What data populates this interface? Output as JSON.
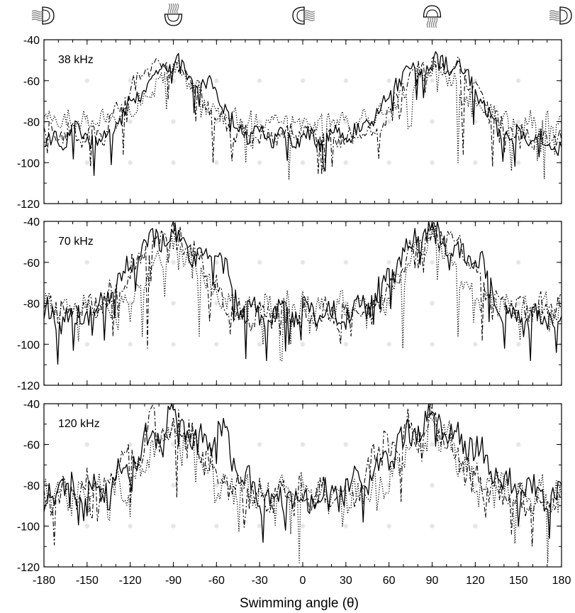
{
  "chart_data": [
    {
      "type": "line",
      "panel_label": "38 kHz",
      "xlim": [
        -180,
        180
      ],
      "ylim": [
        -120,
        -40
      ],
      "xticks": [
        -180,
        -150,
        -120,
        -90,
        -60,
        -30,
        0,
        30,
        60,
        90,
        120,
        150,
        180
      ],
      "yticks": [
        -40,
        -60,
        -80,
        -100,
        -120
      ],
      "series": [
        {
          "style": "solid",
          "x": [
            -180,
            -160,
            -140,
            -120,
            -105,
            -95,
            -85,
            -75,
            -60,
            -50,
            -40,
            -20,
            0,
            20,
            40,
            55,
            65,
            75,
            85,
            95,
            105,
            120,
            130,
            140,
            160,
            180
          ],
          "values": [
            -93,
            -85,
            -90,
            -72,
            -58,
            -53,
            -50,
            -62,
            -63,
            -80,
            -86,
            -88,
            -89,
            -88,
            -84,
            -73,
            -60,
            -55,
            -53,
            -51,
            -52,
            -62,
            -80,
            -85,
            -89,
            -92
          ]
        },
        {
          "style": "dashed",
          "x": [
            -180,
            -160,
            -140,
            -125,
            -110,
            -100,
            -90,
            -80,
            -70,
            -60,
            -50,
            -30,
            0,
            30,
            50,
            60,
            70,
            80,
            90,
            100,
            110,
            125,
            140,
            160,
            180
          ],
          "values": [
            -84,
            -86,
            -88,
            -69,
            -56,
            -52,
            -52,
            -57,
            -68,
            -78,
            -85,
            -88,
            -85,
            -88,
            -85,
            -75,
            -62,
            -54,
            -52,
            -52,
            -55,
            -68,
            -82,
            -88,
            -87
          ],
          "min_spikes": [
            [
              -148,
              -102
            ],
            [
              -125,
              -96
            ],
            [
              -62,
              -100
            ],
            [
              53,
              -98
            ],
            [
              112,
              -96
            ],
            [
              132,
              -102
            ]
          ]
        },
        {
          "style": "dotted",
          "x": [
            -180,
            -150,
            -130,
            -110,
            -100,
            -90,
            -80,
            -70,
            -60,
            -40,
            -20,
            0,
            20,
            40,
            60,
            70,
            80,
            90,
            100,
            110,
            130,
            150,
            180
          ],
          "values": [
            -80,
            -80,
            -78,
            -70,
            -62,
            -54,
            -58,
            -68,
            -76,
            -80,
            -80,
            -80,
            -80,
            -80,
            -76,
            -67,
            -58,
            -53,
            -57,
            -66,
            -77,
            -80,
            -80
          ],
          "min_spikes": [
            [
              -95,
              -74
            ],
            [
              -40,
              -100
            ],
            [
              -10,
              -108
            ],
            [
              15,
              -104
            ],
            [
              75,
              -82
            ],
            [
              108,
              -100
            ],
            [
              145,
              -104
            ],
            [
              168,
              -108
            ]
          ]
        }
      ]
    },
    {
      "type": "line",
      "panel_label": "70 kHz",
      "xlim": [
        -180,
        180
      ],
      "ylim": [
        -120,
        -40
      ],
      "xticks": [
        -180,
        -150,
        -120,
        -90,
        -60,
        -30,
        0,
        30,
        60,
        90,
        120,
        150,
        180
      ],
      "yticks": [
        -40,
        -60,
        -80,
        -100,
        -120
      ],
      "series": [
        {
          "style": "solid",
          "x": [
            -180,
            -160,
            -140,
            -130,
            -120,
            -110,
            -100,
            -90,
            -80,
            -70,
            -60,
            -55,
            -45,
            -30,
            0,
            30,
            45,
            60,
            70,
            80,
            90,
            100,
            110,
            120,
            125,
            135,
            150,
            180
          ],
          "values": [
            -85,
            -88,
            -82,
            -72,
            -62,
            -52,
            -48,
            -46,
            -54,
            -62,
            -56,
            -62,
            -80,
            -86,
            -85,
            -86,
            -80,
            -68,
            -55,
            -47,
            -45,
            -48,
            -58,
            -54,
            -62,
            -82,
            -88,
            -86
          ],
          "min_spikes": [
            [
              -160,
              -103
            ],
            [
              -138,
              -98
            ],
            [
              -40,
              -107
            ],
            [
              -25,
              -108
            ],
            [
              -10,
              -100
            ],
            [
              140,
              -102
            ],
            [
              158,
              -108
            ],
            [
              176,
              -104
            ]
          ]
        },
        {
          "style": "dashed",
          "x": [
            -180,
            -160,
            -140,
            -125,
            -115,
            -105,
            -95,
            -85,
            -75,
            -65,
            -55,
            -40,
            0,
            40,
            55,
            65,
            75,
            85,
            95,
            105,
            115,
            125,
            140,
            160,
            180
          ],
          "values": [
            -80,
            -84,
            -80,
            -70,
            -60,
            -50,
            -47,
            -48,
            -55,
            -68,
            -80,
            -86,
            -85,
            -86,
            -80,
            -68,
            -56,
            -48,
            -46,
            -48,
            -56,
            -70,
            -82,
            -84,
            -80
          ],
          "min_spikes": [
            [
              -132,
              -96
            ],
            [
              -108,
              -102
            ],
            [
              34,
              -96
            ],
            [
              125,
              -98
            ]
          ]
        },
        {
          "style": "dotted",
          "x": [
            -180,
            -150,
            -120,
            -110,
            -100,
            -90,
            -80,
            -70,
            -60,
            -40,
            0,
            40,
            60,
            70,
            80,
            90,
            100,
            110,
            120,
            150,
            180
          ],
          "values": [
            -82,
            -82,
            -80,
            -70,
            -58,
            -52,
            -56,
            -66,
            -78,
            -82,
            -82,
            -82,
            -78,
            -64,
            -52,
            -48,
            -54,
            -66,
            -78,
            -82,
            -82
          ],
          "min_spikes": [
            [
              -112,
              -96
            ],
            [
              -72,
              -96
            ],
            [
              -15,
              -108
            ],
            [
              -8,
              -100
            ],
            [
              70,
              -102
            ],
            [
              108,
              -96
            ]
          ]
        }
      ]
    },
    {
      "type": "line",
      "panel_label": "120 kHz",
      "xlim": [
        -180,
        180
      ],
      "ylim": [
        -120,
        -40
      ],
      "xticks": [
        -180,
        -150,
        -120,
        -90,
        -60,
        -30,
        0,
        30,
        60,
        90,
        120,
        150,
        180
      ],
      "yticks": [
        -40,
        -60,
        -80,
        -100,
        -120
      ],
      "series": [
        {
          "style": "solid",
          "x": [
            -180,
            -160,
            -140,
            -130,
            -120,
            -110,
            -100,
            -90,
            -85,
            -80,
            -70,
            -60,
            -55,
            -45,
            -30,
            0,
            30,
            45,
            55,
            65,
            75,
            85,
            92,
            100,
            110,
            120,
            130,
            140,
            160,
            180
          ],
          "values": [
            -86,
            -80,
            -84,
            -75,
            -70,
            -60,
            -52,
            -50,
            -45,
            -55,
            -60,
            -56,
            -52,
            -78,
            -84,
            -86,
            -82,
            -76,
            -70,
            -62,
            -55,
            -50,
            -46,
            -52,
            -56,
            -60,
            -70,
            -80,
            -84,
            -86
          ],
          "min_spikes": [
            [
              -150,
              -95
            ],
            [
              -135,
              -92
            ],
            [
              -28,
              -108
            ],
            [
              -12,
              -102
            ],
            [
              42,
              -98
            ],
            [
              150,
              -100
            ],
            [
              172,
              -106
            ]
          ]
        },
        {
          "style": "dashed",
          "x": [
            -180,
            -150,
            -130,
            -125,
            -115,
            -105,
            -95,
            -85,
            -75,
            -65,
            -50,
            -30,
            0,
            30,
            45,
            50,
            60,
            70,
            80,
            90,
            100,
            115,
            130,
            150,
            180
          ],
          "values": [
            -86,
            -82,
            -76,
            -58,
            -66,
            -50,
            -54,
            -48,
            -60,
            -68,
            -80,
            -86,
            -86,
            -84,
            -78,
            -58,
            -64,
            -52,
            -56,
            -48,
            -58,
            -72,
            -82,
            -86,
            -86
          ],
          "min_spikes": [
            [
              -120,
              -90
            ],
            [
              -88,
              -86
            ],
            [
              68,
              -88
            ],
            [
              145,
              -104
            ],
            [
              160,
              -110
            ]
          ]
        },
        {
          "style": "dotted",
          "x": [
            -180,
            -150,
            -120,
            -110,
            -100,
            -90,
            -80,
            -70,
            -60,
            -40,
            0,
            40,
            60,
            70,
            80,
            90,
            100,
            110,
            120,
            150,
            180
          ],
          "values": [
            -84,
            -84,
            -80,
            -70,
            -60,
            -52,
            -58,
            -68,
            -78,
            -84,
            -84,
            -84,
            -78,
            -66,
            -56,
            -50,
            -56,
            -68,
            -80,
            -84,
            -84
          ],
          "min_spikes": [
            [
              -2,
              -118
            ],
            [
              -8,
              -104
            ],
            [
              28,
              -100
            ],
            [
              170,
              -118
            ]
          ]
        }
      ]
    }
  ],
  "xlabel": "Swimming angle (θ)",
  "orientation_icons": [
    "jellyfish-icon",
    "jellyfish-icon",
    "jellyfish-icon",
    "jellyfish-icon",
    "jellyfish-icon"
  ]
}
